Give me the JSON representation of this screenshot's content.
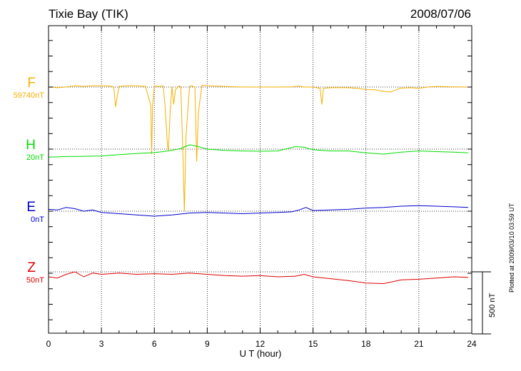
{
  "header": {
    "station": "Tixie Bay (TIK)",
    "date": "2008/07/06"
  },
  "footer": {
    "plotted_at": "Plotted at 2009/03/10 03:59 UT"
  },
  "chart_data": {
    "type": "line",
    "title": "Tixie Bay (TIK)",
    "xlabel": "U T (hour)",
    "ylabel": "",
    "xlim": [
      0,
      24
    ],
    "xticks": [
      0,
      3,
      6,
      9,
      12,
      15,
      18,
      21,
      24
    ],
    "grid": true,
    "scale_bar": {
      "value": 500,
      "unit": "nT",
      "label": "500 nT"
    },
    "colors": {
      "F": "#f5b000",
      "H": "#00dd00",
      "E": "#0000cc",
      "Z": "#dd0000"
    },
    "series": [
      {
        "name": "F",
        "baseline_label": "59740nT",
        "baseline": 59740,
        "x": [
          0,
          0.5,
          1,
          1.5,
          2,
          2.5,
          3,
          3.5,
          3.7,
          3.8,
          4,
          4.5,
          5,
          5.5,
          5.8,
          5.85,
          5.9,
          6,
          6.3,
          6.5,
          6.6,
          6.75,
          6.8,
          6.9,
          7.0,
          7.1,
          7.2,
          7.4,
          7.5,
          7.6,
          7.7,
          7.8,
          7.95,
          8.0,
          8.1,
          8.3,
          8.4,
          8.5,
          8.7,
          9,
          10,
          11,
          12,
          13,
          13.8,
          14.2,
          14.5,
          15,
          15.4,
          15.5,
          15.6,
          16,
          17,
          17.5,
          18,
          18.5,
          19,
          19.4,
          19.9,
          20.5,
          21,
          21.5,
          22,
          23,
          23.8
        ],
        "values": [
          59740,
          59735,
          59740,
          59750,
          59745,
          59750,
          59750,
          59748,
          59740,
          59580,
          59745,
          59750,
          59750,
          59745,
          59590,
          59200,
          59600,
          59748,
          59745,
          59750,
          59600,
          59260,
          59230,
          59550,
          59740,
          59600,
          59720,
          59750,
          59740,
          59300,
          58740,
          59350,
          59650,
          59745,
          59750,
          59740,
          59140,
          59540,
          59755,
          59750,
          59745,
          59740,
          59740,
          59740,
          59742,
          59748,
          59740,
          59740,
          59730,
          59600,
          59730,
          59735,
          59735,
          59730,
          59720,
          59718,
          59705,
          59700,
          59730,
          59735,
          59730,
          59740,
          59745,
          59742,
          59740
        ]
      },
      {
        "name": "H",
        "baseline_label": "20nT",
        "baseline": 20,
        "x": [
          0,
          1,
          2,
          3,
          4,
          5,
          6,
          6.5,
          7,
          7.5,
          8,
          8.5,
          9,
          9.5,
          10,
          11,
          12,
          13,
          14,
          14.5,
          15,
          16,
          17,
          18,
          19,
          20,
          21,
          22,
          23,
          23.8
        ],
        "values": [
          -45,
          -40,
          -38,
          -35,
          -25,
          -15,
          -8,
          0,
          10,
          25,
          55,
          40,
          20,
          15,
          10,
          5,
          3,
          5,
          40,
          35,
          15,
          5,
          5,
          -10,
          -20,
          -5,
          5,
          0,
          -5,
          -10
        ]
      },
      {
        "name": "E",
        "baseline_label": "0nT",
        "baseline": 0,
        "x": [
          0,
          0.5,
          1,
          1.5,
          2,
          2.5,
          3,
          4,
          5,
          6,
          7,
          8,
          9,
          10,
          11,
          12,
          13,
          13.8,
          14.2,
          14.6,
          15,
          16,
          17,
          18,
          19,
          20,
          21,
          22,
          23,
          23.8
        ],
        "values": [
          15,
          10,
          30,
          20,
          0,
          10,
          -10,
          -20,
          -30,
          -40,
          -30,
          -15,
          -10,
          -15,
          -20,
          -15,
          -10,
          -5,
          10,
          30,
          5,
          10,
          15,
          25,
          30,
          40,
          45,
          40,
          35,
          30
        ]
      },
      {
        "name": "Z",
        "baseline_label": "50nT",
        "baseline": 50,
        "x": [
          0,
          0.5,
          1,
          1.5,
          2,
          2.5,
          3,
          4,
          5,
          6,
          7,
          8,
          9,
          10,
          11,
          12,
          13,
          14,
          14.5,
          15,
          16,
          17,
          18,
          19,
          20,
          21,
          22,
          23,
          23.8
        ],
        "values": [
          10,
          0,
          30,
          50,
          10,
          40,
          30,
          40,
          30,
          35,
          30,
          40,
          30,
          20,
          15,
          20,
          10,
          15,
          30,
          10,
          -5,
          -20,
          -40,
          -45,
          -15,
          -10,
          0,
          10,
          5
        ]
      }
    ]
  }
}
